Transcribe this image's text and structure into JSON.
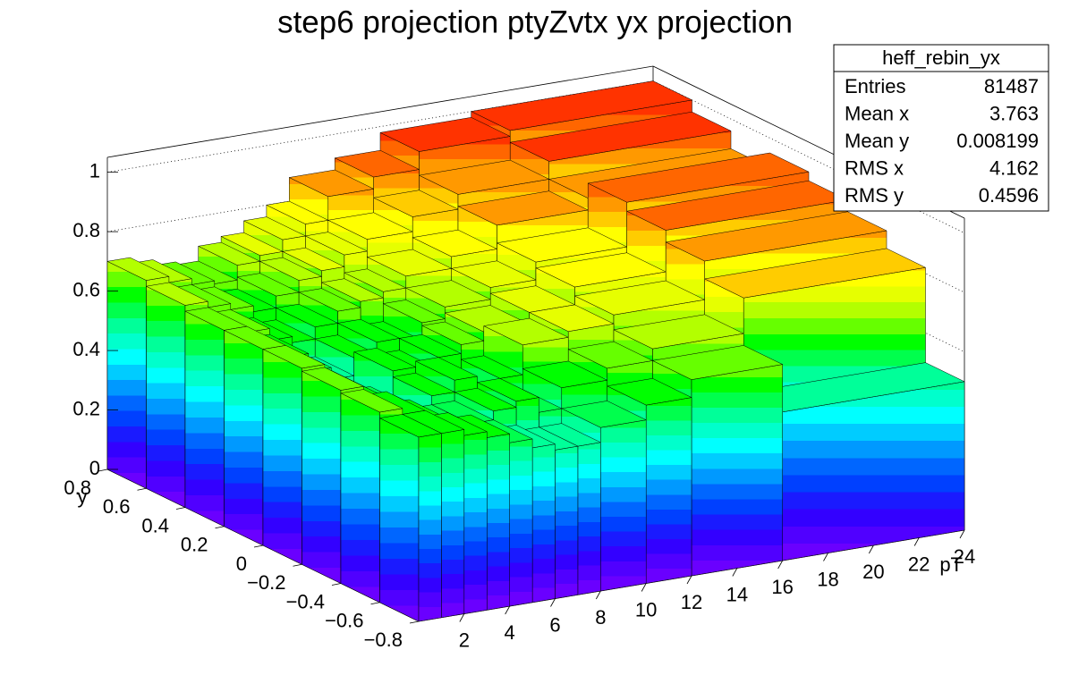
{
  "chart_data": {
    "type": "lego",
    "title": "step6 projection ptyZvtx yx projection",
    "x_label": "pT",
    "y_label": "y",
    "xbins": [
      0,
      1,
      2,
      3,
      4,
      5,
      6,
      7,
      8,
      10,
      12,
      16,
      24
    ],
    "ybins": [
      -0.8,
      -0.6,
      -0.4,
      -0.2,
      0,
      0.2,
      0.4,
      0.6,
      0.8
    ],
    "z": [
      [
        0.62,
        0.62,
        0.6,
        0.58,
        0.55,
        0.52,
        0.5,
        0.5,
        0.55,
        0.6,
        0.66,
        0.5
      ],
      [
        0.64,
        0.62,
        0.58,
        0.55,
        0.55,
        0.58,
        0.6,
        0.55,
        0.62,
        0.66,
        0.7,
        0.82
      ],
      [
        0.65,
        0.6,
        0.56,
        0.52,
        0.58,
        0.62,
        0.55,
        0.6,
        0.7,
        0.72,
        0.75,
        0.88
      ],
      [
        0.66,
        0.6,
        0.55,
        0.5,
        0.6,
        0.58,
        0.62,
        0.65,
        0.68,
        0.72,
        0.78,
        0.92
      ],
      [
        0.66,
        0.62,
        0.56,
        0.52,
        0.58,
        0.62,
        0.6,
        0.66,
        0.7,
        0.74,
        0.8,
        0.95
      ],
      [
        0.66,
        0.64,
        0.6,
        0.58,
        0.62,
        0.66,
        0.68,
        0.7,
        0.74,
        0.78,
        0.86,
        0.9
      ],
      [
        0.68,
        0.66,
        0.64,
        0.62,
        0.66,
        0.7,
        0.72,
        0.76,
        0.8,
        0.85,
        0.9,
        0.96
      ],
      [
        0.7,
        0.68,
        0.66,
        0.65,
        0.7,
        0.72,
        0.76,
        0.8,
        0.88,
        0.92,
        0.98,
        1.0
      ]
    ],
    "xlim": [
      0,
      24
    ],
    "xticks": [
      2,
      4,
      6,
      8,
      10,
      12,
      14,
      16,
      18,
      20,
      22,
      24
    ],
    "ylim": [
      -0.8,
      0.8
    ],
    "yticks": [
      {
        "value": -0.8,
        "label": "−0.8"
      },
      {
        "value": -0.6,
        "label": "−0.6"
      },
      {
        "value": -0.4,
        "label": "−0.4"
      },
      {
        "value": -0.2,
        "label": "−0.2"
      },
      0,
      0.2,
      0.4,
      0.6,
      0.8
    ],
    "zlim": [
      0,
      1.05
    ],
    "zticks": [
      0,
      0.2,
      0.4,
      0.6,
      0.8,
      1
    ],
    "grid": true,
    "palette": [
      "#6a00ff",
      "#5000ff",
      "#3300ff",
      "#1a1aff",
      "#0040ff",
      "#0066ff",
      "#0099ff",
      "#00ccff",
      "#00ffff",
      "#00ffcc",
      "#00ff99",
      "#00ff4d",
      "#00ff00",
      "#66ff00",
      "#b3ff00",
      "#e6ff00",
      "#ffff00",
      "#ffcc00",
      "#ff9900",
      "#ff6600",
      "#ff3300",
      "#ff0000"
    ],
    "stats": {
      "name": "heff_rebin_yx",
      "rows": [
        {
          "label": "Entries",
          "value": 81487
        },
        {
          "label": "Mean x",
          "value": 3.763
        },
        {
          "label": "Mean y",
          "value": 0.008199
        },
        {
          "label": "RMS x",
          "value": 4.162
        },
        {
          "label": "RMS y",
          "value": 0.4596
        }
      ]
    }
  }
}
